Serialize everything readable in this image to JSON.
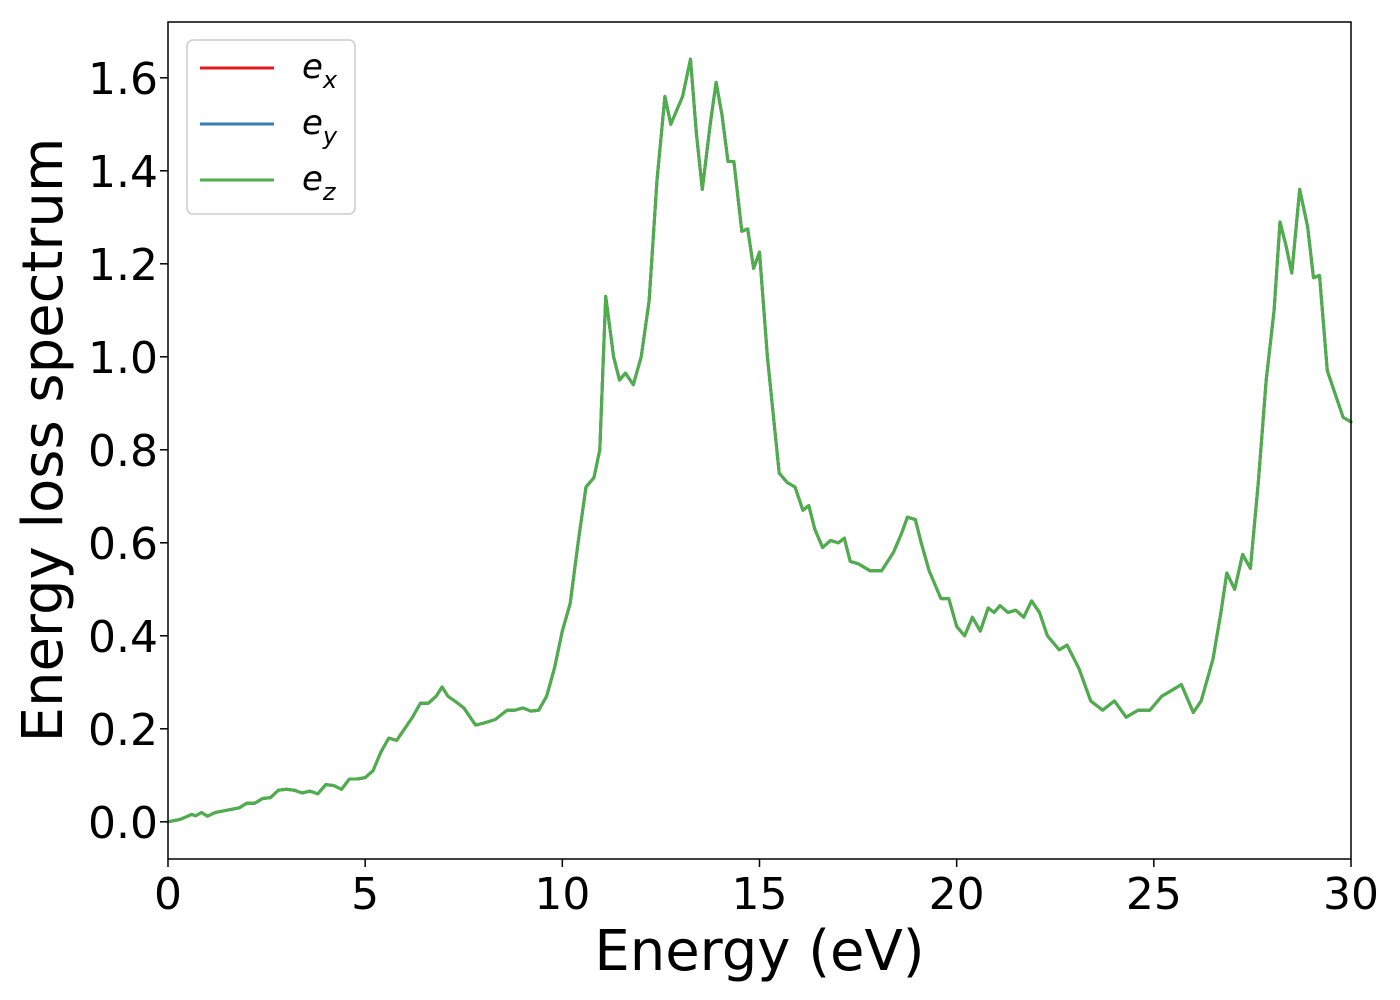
{
  "chart_data": {
    "type": "line",
    "title": "",
    "xlabel": "Energy (eV)",
    "ylabel": "Energy loss spectrum",
    "xlim": [
      0,
      30
    ],
    "ylim": [
      -0.08,
      1.72
    ],
    "xticks": [
      0,
      5,
      10,
      15,
      20,
      25,
      30
    ],
    "xtick_labels": [
      "0",
      "5",
      "10",
      "15",
      "20",
      "25",
      "30"
    ],
    "yticks": [
      0.0,
      0.2,
      0.4,
      0.6,
      0.8,
      1.0,
      1.2,
      1.4,
      1.6
    ],
    "ytick_labels": [
      "0.0",
      "0.2",
      "0.4",
      "0.6",
      "0.8",
      "1.0",
      "1.2",
      "1.4",
      "1.6"
    ],
    "grid": false,
    "legend_position": "top-left",
    "series": [
      {
        "name": "e_x",
        "label_base": "e",
        "label_sub": "x",
        "color": "#e41a1c",
        "points": [
          [
            0,
            0.0
          ],
          [
            0.3,
            0.005
          ],
          [
            0.5,
            0.012
          ],
          [
            0.6,
            0.016
          ],
          [
            0.7,
            0.013
          ],
          [
            0.85,
            0.02
          ],
          [
            1.0,
            0.012
          ],
          [
            1.2,
            0.02
          ],
          [
            1.5,
            0.025
          ],
          [
            1.8,
            0.03
          ],
          [
            2.0,
            0.04
          ],
          [
            2.2,
            0.04
          ],
          [
            2.4,
            0.05
          ],
          [
            2.6,
            0.052
          ],
          [
            2.8,
            0.068
          ],
          [
            3.0,
            0.07
          ],
          [
            3.2,
            0.068
          ],
          [
            3.4,
            0.062
          ],
          [
            3.6,
            0.066
          ],
          [
            3.8,
            0.06
          ],
          [
            4.0,
            0.08
          ],
          [
            4.2,
            0.078
          ],
          [
            4.4,
            0.07
          ],
          [
            4.6,
            0.092
          ],
          [
            4.8,
            0.092
          ],
          [
            5.0,
            0.095
          ],
          [
            5.2,
            0.11
          ],
          [
            5.4,
            0.15
          ],
          [
            5.6,
            0.18
          ],
          [
            5.8,
            0.175
          ],
          [
            6.0,
            0.2
          ],
          [
            6.2,
            0.225
          ],
          [
            6.4,
            0.255
          ],
          [
            6.6,
            0.255
          ],
          [
            6.8,
            0.27
          ],
          [
            6.95,
            0.29
          ],
          [
            7.1,
            0.27
          ],
          [
            7.3,
            0.258
          ],
          [
            7.5,
            0.245
          ],
          [
            7.8,
            0.208
          ],
          [
            8.0,
            0.212
          ],
          [
            8.3,
            0.22
          ],
          [
            8.6,
            0.24
          ],
          [
            8.8,
            0.24
          ],
          [
            9.0,
            0.245
          ],
          [
            9.2,
            0.238
          ],
          [
            9.4,
            0.24
          ],
          [
            9.6,
            0.27
          ],
          [
            9.8,
            0.33
          ],
          [
            10.0,
            0.41
          ],
          [
            10.2,
            0.47
          ],
          [
            10.4,
            0.6
          ],
          [
            10.6,
            0.72
          ],
          [
            10.8,
            0.74
          ],
          [
            10.95,
            0.8
          ],
          [
            11.1,
            1.13
          ],
          [
            11.3,
            1.0
          ],
          [
            11.45,
            0.95
          ],
          [
            11.6,
            0.965
          ],
          [
            11.8,
            0.94
          ],
          [
            12.0,
            1.0
          ],
          [
            12.2,
            1.12
          ],
          [
            12.4,
            1.38
          ],
          [
            12.6,
            1.56
          ],
          [
            12.75,
            1.5
          ],
          [
            12.9,
            1.53
          ],
          [
            13.05,
            1.56
          ],
          [
            13.25,
            1.64
          ],
          [
            13.4,
            1.48
          ],
          [
            13.55,
            1.36
          ],
          [
            13.75,
            1.5
          ],
          [
            13.9,
            1.59
          ],
          [
            14.05,
            1.52
          ],
          [
            14.2,
            1.42
          ],
          [
            14.35,
            1.42
          ],
          [
            14.55,
            1.27
          ],
          [
            14.7,
            1.275
          ],
          [
            14.85,
            1.19
          ],
          [
            15.0,
            1.225
          ],
          [
            15.2,
            1.0
          ],
          [
            15.5,
            0.75
          ],
          [
            15.7,
            0.73
          ],
          [
            15.9,
            0.72
          ],
          [
            16.1,
            0.67
          ],
          [
            16.25,
            0.68
          ],
          [
            16.4,
            0.63
          ],
          [
            16.6,
            0.59
          ],
          [
            16.8,
            0.605
          ],
          [
            17.0,
            0.6
          ],
          [
            17.15,
            0.61
          ],
          [
            17.3,
            0.56
          ],
          [
            17.5,
            0.555
          ],
          [
            17.8,
            0.54
          ],
          [
            18.1,
            0.54
          ],
          [
            18.4,
            0.58
          ],
          [
            18.6,
            0.62
          ],
          [
            18.75,
            0.655
          ],
          [
            18.95,
            0.65
          ],
          [
            19.1,
            0.6
          ],
          [
            19.3,
            0.54
          ],
          [
            19.6,
            0.48
          ],
          [
            19.8,
            0.48
          ],
          [
            20.0,
            0.42
          ],
          [
            20.2,
            0.4
          ],
          [
            20.4,
            0.44
          ],
          [
            20.6,
            0.41
          ],
          [
            20.8,
            0.46
          ],
          [
            20.95,
            0.45
          ],
          [
            21.1,
            0.465
          ],
          [
            21.3,
            0.45
          ],
          [
            21.5,
            0.455
          ],
          [
            21.7,
            0.44
          ],
          [
            21.9,
            0.475
          ],
          [
            22.1,
            0.45
          ],
          [
            22.3,
            0.4
          ],
          [
            22.6,
            0.37
          ],
          [
            22.8,
            0.38
          ],
          [
            23.1,
            0.33
          ],
          [
            23.4,
            0.26
          ],
          [
            23.7,
            0.24
          ],
          [
            24.0,
            0.26
          ],
          [
            24.3,
            0.225
          ],
          [
            24.6,
            0.24
          ],
          [
            24.9,
            0.24
          ],
          [
            25.2,
            0.27
          ],
          [
            25.5,
            0.285
          ],
          [
            25.7,
            0.295
          ],
          [
            26.0,
            0.235
          ],
          [
            26.2,
            0.26
          ],
          [
            26.5,
            0.35
          ],
          [
            26.7,
            0.45
          ],
          [
            26.85,
            0.535
          ],
          [
            27.05,
            0.5
          ],
          [
            27.25,
            0.575
          ],
          [
            27.45,
            0.545
          ],
          [
            27.65,
            0.73
          ],
          [
            27.85,
            0.95
          ],
          [
            28.05,
            1.1
          ],
          [
            28.2,
            1.29
          ],
          [
            28.35,
            1.24
          ],
          [
            28.5,
            1.18
          ],
          [
            28.7,
            1.36
          ],
          [
            28.9,
            1.28
          ],
          [
            29.05,
            1.17
          ],
          [
            29.2,
            1.175
          ],
          [
            29.4,
            0.97
          ],
          [
            29.6,
            0.92
          ],
          [
            29.8,
            0.87
          ],
          [
            30.0,
            0.86
          ]
        ]
      },
      {
        "name": "e_y",
        "label_base": "e",
        "label_sub": "y",
        "color": "#377eb8",
        "same_as": "e_x"
      },
      {
        "name": "e_z",
        "label_base": "e",
        "label_sub": "z",
        "color": "#4daf4a",
        "same_as": "e_x"
      }
    ]
  }
}
